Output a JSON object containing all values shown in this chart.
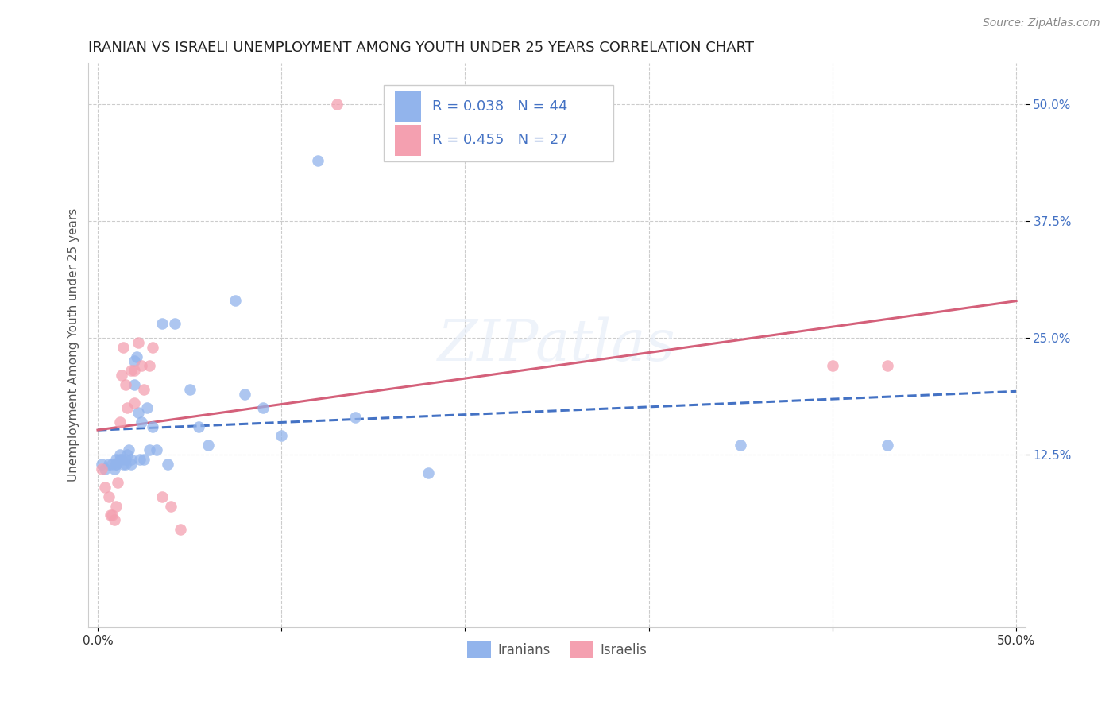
{
  "title": "IRANIAN VS ISRAELI UNEMPLOYMENT AMONG YOUTH UNDER 25 YEARS CORRELATION CHART",
  "source": "Source: ZipAtlas.com",
  "ylabel": "Unemployment Among Youth under 25 years",
  "ylim": [
    -0.06,
    0.545
  ],
  "xlim": [
    -0.005,
    0.505
  ],
  "yticks": [
    0.125,
    0.25,
    0.375,
    0.5
  ],
  "ytick_labels": [
    "12.5%",
    "25.0%",
    "37.5%",
    "50.0%"
  ],
  "xticks": [
    0.0,
    0.1,
    0.2,
    0.3,
    0.4,
    0.5
  ],
  "xtick_labels": [
    "0.0%",
    "",
    "",
    "",
    "",
    "50.0%"
  ],
  "iranian_color": "#92b4ec",
  "israeli_color": "#f4a0b0",
  "iranian_line_color": "#4472c4",
  "israeli_line_color": "#d4607a",
  "R_iranian": 0.038,
  "N_iranian": 44,
  "R_israeli": 0.455,
  "N_israeli": 27,
  "iranians_x": [
    0.002,
    0.004,
    0.006,
    0.008,
    0.009,
    0.01,
    0.01,
    0.01,
    0.012,
    0.012,
    0.013,
    0.014,
    0.015,
    0.015,
    0.016,
    0.017,
    0.018,
    0.018,
    0.02,
    0.02,
    0.021,
    0.022,
    0.023,
    0.024,
    0.025,
    0.027,
    0.028,
    0.03,
    0.032,
    0.035,
    0.038,
    0.042,
    0.05,
    0.055,
    0.06,
    0.075,
    0.08,
    0.09,
    0.1,
    0.12,
    0.14,
    0.18,
    0.35,
    0.43
  ],
  "iranians_y": [
    0.115,
    0.11,
    0.115,
    0.115,
    0.11,
    0.115,
    0.115,
    0.12,
    0.12,
    0.125,
    0.12,
    0.115,
    0.115,
    0.12,
    0.125,
    0.13,
    0.115,
    0.12,
    0.2,
    0.225,
    0.23,
    0.17,
    0.12,
    0.16,
    0.12,
    0.175,
    0.13,
    0.155,
    0.13,
    0.265,
    0.115,
    0.265,
    0.195,
    0.155,
    0.135,
    0.29,
    0.19,
    0.175,
    0.145,
    0.44,
    0.165,
    0.105,
    0.135,
    0.135
  ],
  "israelis_x": [
    0.002,
    0.004,
    0.006,
    0.007,
    0.008,
    0.009,
    0.01,
    0.011,
    0.012,
    0.013,
    0.014,
    0.015,
    0.016,
    0.018,
    0.02,
    0.02,
    0.022,
    0.024,
    0.025,
    0.028,
    0.03,
    0.035,
    0.04,
    0.045,
    0.13,
    0.4,
    0.43
  ],
  "israelis_y": [
    0.11,
    0.09,
    0.08,
    0.06,
    0.06,
    0.055,
    0.07,
    0.095,
    0.16,
    0.21,
    0.24,
    0.2,
    0.175,
    0.215,
    0.18,
    0.215,
    0.245,
    0.22,
    0.195,
    0.22,
    0.24,
    0.08,
    0.07,
    0.045,
    0.5,
    0.22,
    0.22
  ],
  "background_color": "#ffffff",
  "grid_color": "#cccccc",
  "title_fontsize": 13,
  "label_fontsize": 11,
  "tick_fontsize": 11,
  "legend_fontsize": 13,
  "marker_size": 110,
  "marker_alpha": 0.75,
  "line_width": 2.2
}
